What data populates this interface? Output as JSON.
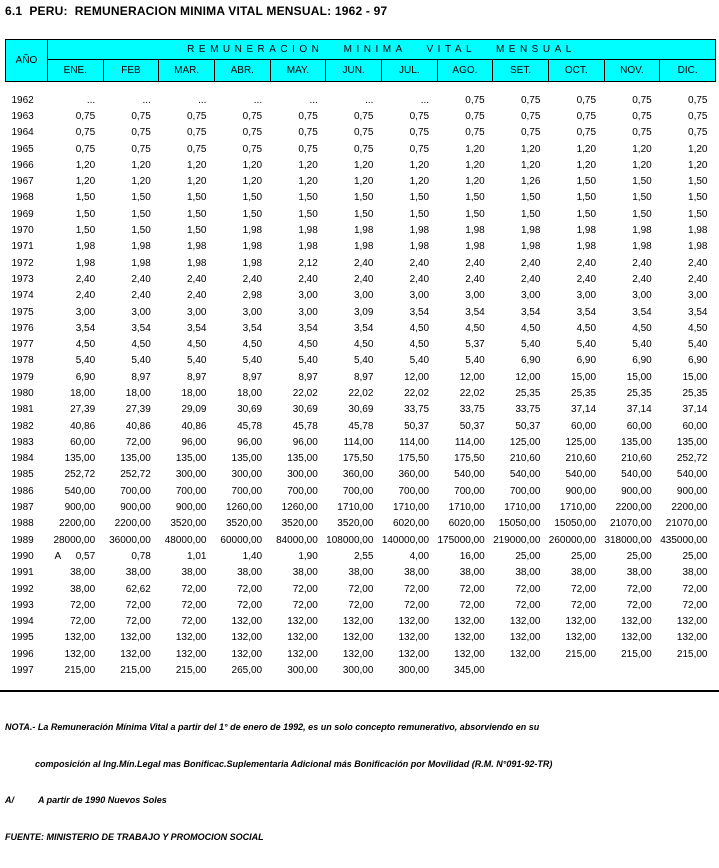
{
  "title": "6.1  PERU:  REMUNERACION MINIMA VITAL MENSUAL: 1962 - 97",
  "colors": {
    "header_bg": "#00FFFF",
    "border": "#000000",
    "text": "#000000"
  },
  "table": {
    "span_header": "REMUNERACION MINIMA VITAL MENSUAL",
    "year_header": "AÑO",
    "month_headers": [
      "ENE.",
      "FEB",
      "MAR.",
      "ABR.",
      "MAY.",
      "JUN.",
      "JUL.",
      "AGO.",
      "SET.",
      "OCT.",
      "NOV.",
      "DIC."
    ],
    "rows": [
      {
        "year": "1962",
        "note": "",
        "values": [
          "...",
          "...",
          "...",
          "...",
          "...",
          "...",
          "...",
          "0,75",
          "0,75",
          "0,75",
          "0,75",
          "0,75"
        ]
      },
      {
        "year": "1963",
        "note": "",
        "values": [
          "0,75",
          "0,75",
          "0,75",
          "0,75",
          "0,75",
          "0,75",
          "0,75",
          "0,75",
          "0,75",
          "0,75",
          "0,75",
          "0,75"
        ]
      },
      {
        "year": "1964",
        "note": "",
        "values": [
          "0,75",
          "0,75",
          "0,75",
          "0,75",
          "0,75",
          "0,75",
          "0,75",
          "0,75",
          "0,75",
          "0,75",
          "0,75",
          "0,75"
        ]
      },
      {
        "year": "1965",
        "note": "",
        "values": [
          "0,75",
          "0,75",
          "0,75",
          "0,75",
          "0,75",
          "0,75",
          "0,75",
          "1,20",
          "1,20",
          "1,20",
          "1,20",
          "1,20"
        ]
      },
      {
        "year": "1966",
        "note": "",
        "values": [
          "1,20",
          "1,20",
          "1,20",
          "1,20",
          "1,20",
          "1,20",
          "1,20",
          "1,20",
          "1,20",
          "1,20",
          "1,20",
          "1,20"
        ]
      },
      {
        "year": "1967",
        "note": "",
        "values": [
          "1,20",
          "1,20",
          "1,20",
          "1,20",
          "1,20",
          "1,20",
          "1,20",
          "1,20",
          "1,26",
          "1,50",
          "1,50",
          "1,50"
        ]
      },
      {
        "year": "1968",
        "note": "",
        "values": [
          "1,50",
          "1,50",
          "1,50",
          "1,50",
          "1,50",
          "1,50",
          "1,50",
          "1,50",
          "1,50",
          "1,50",
          "1,50",
          "1,50"
        ]
      },
      {
        "year": "1969",
        "note": "",
        "values": [
          "1,50",
          "1,50",
          "1,50",
          "1,50",
          "1,50",
          "1,50",
          "1,50",
          "1,50",
          "1,50",
          "1,50",
          "1,50",
          "1,50"
        ]
      },
      {
        "year": "1970",
        "note": "",
        "values": [
          "1,50",
          "1,50",
          "1,50",
          "1,98",
          "1,98",
          "1,98",
          "1,98",
          "1,98",
          "1,98",
          "1,98",
          "1,98",
          "1,98"
        ]
      },
      {
        "year": "1971",
        "note": "",
        "values": [
          "1,98",
          "1,98",
          "1,98",
          "1,98",
          "1,98",
          "1,98",
          "1,98",
          "1,98",
          "1,98",
          "1,98",
          "1,98",
          "1,98"
        ]
      },
      {
        "year": "1972",
        "note": "",
        "values": [
          "1,98",
          "1,98",
          "1,98",
          "1,98",
          "2,12",
          "2,40",
          "2,40",
          "2,40",
          "2,40",
          "2,40",
          "2,40",
          "2,40"
        ]
      },
      {
        "year": "1973",
        "note": "",
        "values": [
          "2,40",
          "2,40",
          "2,40",
          "2,40",
          "2,40",
          "2,40",
          "2,40",
          "2,40",
          "2,40",
          "2,40",
          "2,40",
          "2,40"
        ]
      },
      {
        "year": "1974",
        "note": "",
        "values": [
          "2,40",
          "2,40",
          "2,40",
          "2,98",
          "3,00",
          "3,00",
          "3,00",
          "3,00",
          "3,00",
          "3,00",
          "3,00",
          "3,00"
        ]
      },
      {
        "year": "1975",
        "note": "",
        "values": [
          "3,00",
          "3,00",
          "3,00",
          "3,00",
          "3,00",
          "3,09",
          "3,54",
          "3,54",
          "3,54",
          "3,54",
          "3,54",
          "3,54"
        ]
      },
      {
        "year": "1976",
        "note": "",
        "values": [
          "3,54",
          "3,54",
          "3,54",
          "3,54",
          "3,54",
          "3,54",
          "4,50",
          "4,50",
          "4,50",
          "4,50",
          "4,50",
          "4,50"
        ]
      },
      {
        "year": "1977",
        "note": "",
        "values": [
          "4,50",
          "4,50",
          "4,50",
          "4,50",
          "4,50",
          "4,50",
          "4,50",
          "5,37",
          "5,40",
          "5,40",
          "5,40",
          "5,40"
        ]
      },
      {
        "year": "1978",
        "note": "",
        "values": [
          "5,40",
          "5,40",
          "5,40",
          "5,40",
          "5,40",
          "5,40",
          "5,40",
          "5,40",
          "6,90",
          "6,90",
          "6,90",
          "6,90"
        ]
      },
      {
        "year": "1979",
        "note": "",
        "values": [
          "6,90",
          "8,97",
          "8,97",
          "8,97",
          "8,97",
          "8,97",
          "12,00",
          "12,00",
          "12,00",
          "15,00",
          "15,00",
          "15,00"
        ]
      },
      {
        "year": "1980",
        "note": "",
        "values": [
          "18,00",
          "18,00",
          "18,00",
          "18,00",
          "22,02",
          "22,02",
          "22,02",
          "22,02",
          "25,35",
          "25,35",
          "25,35",
          "25,35"
        ]
      },
      {
        "year": "1981",
        "note": "",
        "values": [
          "27,39",
          "27,39",
          "29,09",
          "30,69",
          "30,69",
          "30,69",
          "33,75",
          "33,75",
          "33,75",
          "37,14",
          "37,14",
          "37,14"
        ]
      },
      {
        "year": "1982",
        "note": "",
        "values": [
          "40,86",
          "40,86",
          "40,86",
          "45,78",
          "45,78",
          "45,78",
          "50,37",
          "50,37",
          "50,37",
          "60,00",
          "60,00",
          "60,00"
        ]
      },
      {
        "year": "1983",
        "note": "",
        "values": [
          "60,00",
          "72,00",
          "96,00",
          "96,00",
          "96,00",
          "114,00",
          "114,00",
          "114,00",
          "125,00",
          "125,00",
          "135,00",
          "135,00"
        ]
      },
      {
        "year": "1984",
        "note": "",
        "values": [
          "135,00",
          "135,00",
          "135,00",
          "135,00",
          "135,00",
          "175,50",
          "175,50",
          "175,50",
          "210,60",
          "210,60",
          "210,60",
          "252,72"
        ]
      },
      {
        "year": "1985",
        "note": "",
        "values": [
          "252,72",
          "252,72",
          "300,00",
          "300,00",
          "300,00",
          "360,00",
          "360,00",
          "540,00",
          "540,00",
          "540,00",
          "540,00",
          "540,00"
        ]
      },
      {
        "year": "1986",
        "note": "",
        "values": [
          "540,00",
          "700,00",
          "700,00",
          "700,00",
          "700,00",
          "700,00",
          "700,00",
          "700,00",
          "700,00",
          "900,00",
          "900,00",
          "900,00"
        ]
      },
      {
        "year": "1987",
        "note": "",
        "values": [
          "900,00",
          "900,00",
          "900,00",
          "1260,00",
          "1260,00",
          "1710,00",
          "1710,00",
          "1710,00",
          "1710,00",
          "1710,00",
          "2200,00",
          "2200,00"
        ]
      },
      {
        "year": "1988",
        "note": "",
        "values": [
          "2200,00",
          "2200,00",
          "3520,00",
          "3520,00",
          "3520,00",
          "3520,00",
          "6020,00",
          "6020,00",
          "15050,00",
          "15050,00",
          "21070,00",
          "21070,00"
        ]
      },
      {
        "year": "1989",
        "note": "",
        "values": [
          "28000,00",
          "36000,00",
          "48000,00",
          "60000,00",
          "84000,00",
          "108000,00",
          "140000,00",
          "175000,00",
          "219000,00",
          "260000,00",
          "318000,00",
          "435000,00"
        ]
      },
      {
        "year": "1990",
        "note": "A",
        "values": [
          "0,57",
          "0,78",
          "1,01",
          "1,40",
          "1,90",
          "2,55",
          "4,00",
          "16,00",
          "25,00",
          "25,00",
          "25,00",
          "25,00"
        ]
      },
      {
        "year": "1991",
        "note": "",
        "values": [
          "38,00",
          "38,00",
          "38,00",
          "38,00",
          "38,00",
          "38,00",
          "38,00",
          "38,00",
          "38,00",
          "38,00",
          "38,00",
          "38,00"
        ]
      },
      {
        "year": "1992",
        "note": "",
        "values": [
          "38,00",
          "62,62",
          "72,00",
          "72,00",
          "72,00",
          "72,00",
          "72,00",
          "72,00",
          "72,00",
          "72,00",
          "72,00",
          "72,00"
        ]
      },
      {
        "year": "1993",
        "note": "",
        "values": [
          "72,00",
          "72,00",
          "72,00",
          "72,00",
          "72,00",
          "72,00",
          "72,00",
          "72,00",
          "72,00",
          "72,00",
          "72,00",
          "72,00"
        ]
      },
      {
        "year": "1994",
        "note": "",
        "values": [
          "72,00",
          "72,00",
          "72,00",
          "132,00",
          "132,00",
          "132,00",
          "132,00",
          "132,00",
          "132,00",
          "132,00",
          "132,00",
          "132,00"
        ]
      },
      {
        "year": "1995",
        "note": "",
        "values": [
          "132,00",
          "132,00",
          "132,00",
          "132,00",
          "132,00",
          "132,00",
          "132,00",
          "132,00",
          "132,00",
          "132,00",
          "132,00",
          "132,00"
        ]
      },
      {
        "year": "1996",
        "note": "",
        "values": [
          "132,00",
          "132,00",
          "132,00",
          "132,00",
          "132,00",
          "132,00",
          "132,00",
          "132,00",
          "132,00",
          "215,00",
          "215,00",
          "215,00"
        ]
      },
      {
        "year": "1997",
        "note": "",
        "values": [
          "215,00",
          "215,00",
          "215,00",
          "265,00",
          "300,00",
          "300,00",
          "300,00",
          "345,00",
          "",
          "",
          "",
          ""
        ]
      }
    ]
  },
  "footer": {
    "nota_line1": "NOTA.- La Remuneración Mínima Vital a partir del 1° de enero de 1992, es un solo concepto remunerativo, absorviendo en su",
    "nota_line2": "composición al Ing.Mín.Legal mas Bonificac.Suplementaria Adicional más Bonificación por Movilidad (R.M. N°091-92-TR)",
    "footnote_a_label": "A/",
    "footnote_a_text": "A partir de 1990 Nuevos Soles",
    "fuente": "FUENTE: MINISTERIO DE TRABAJO Y PROMOCION SOCIAL"
  }
}
